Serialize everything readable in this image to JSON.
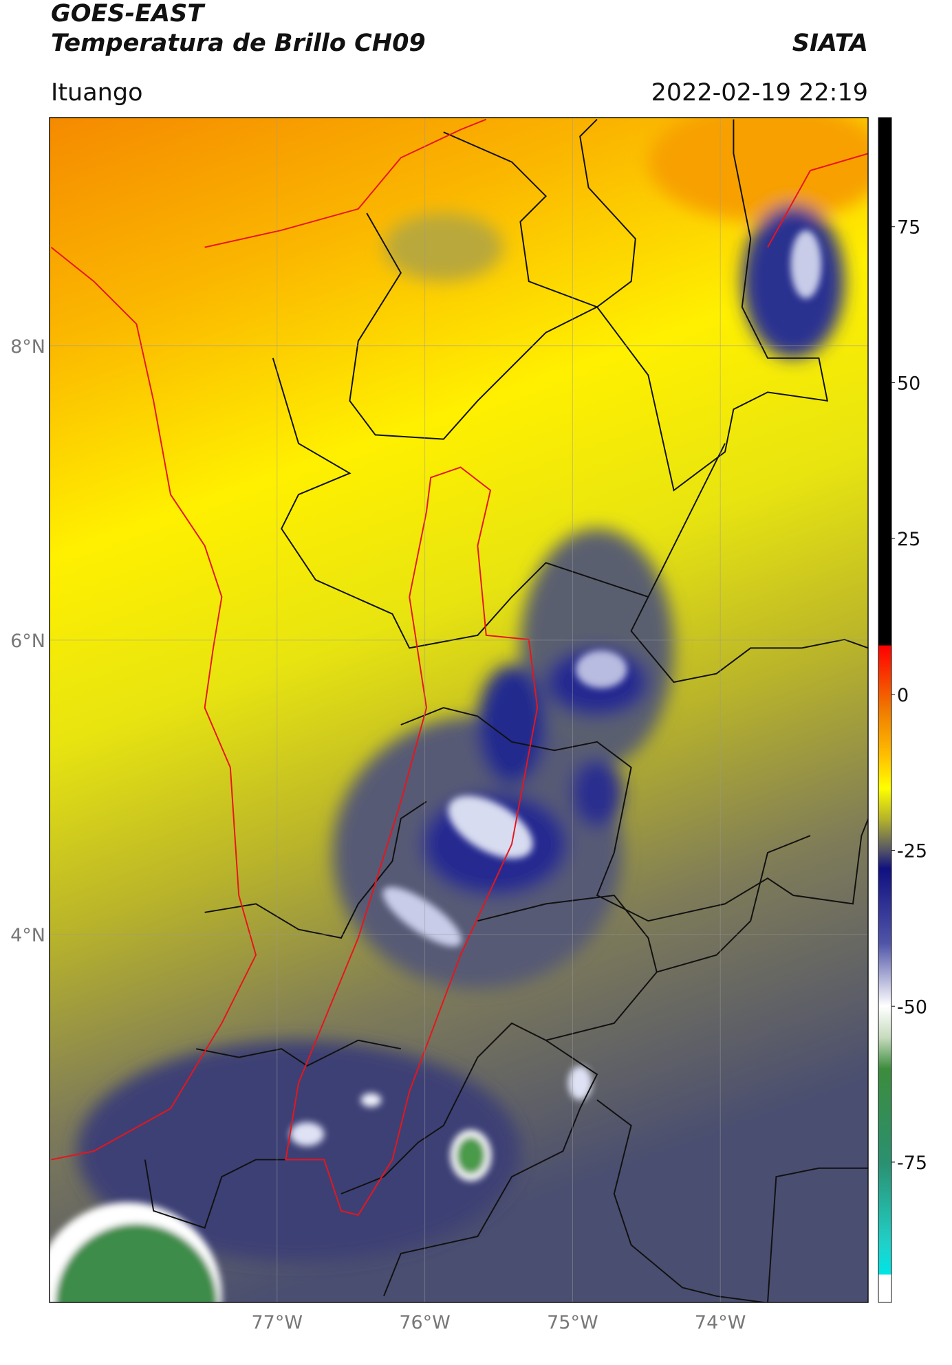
{
  "header": {
    "title": "GOES-EAST",
    "subtitle": "Temperatura de Brillo CH09",
    "brand": "SIATA",
    "location": "Ituango",
    "datetime": "2022-02-19 22:19"
  },
  "map": {
    "xlim": [
      -78.54,
      -73.0
    ],
    "ylim": [
      1.5,
      9.55
    ],
    "grid": true,
    "xticks": [
      {
        "value": -77,
        "label": "77°W"
      },
      {
        "value": -76,
        "label": "76°W"
      },
      {
        "value": -75,
        "label": "75°W"
      },
      {
        "value": -74,
        "label": "74°W"
      }
    ],
    "yticks": [
      {
        "value": 8,
        "label": "8°N"
      },
      {
        "value": 6,
        "label": "6°N"
      },
      {
        "value": 4,
        "label": "4°N"
      }
    ]
  },
  "colorbar": {
    "lim": [
      -97.5,
      92.5
    ],
    "ticks": [
      75,
      50,
      25,
      0,
      -25,
      -50,
      -75
    ]
  }
}
